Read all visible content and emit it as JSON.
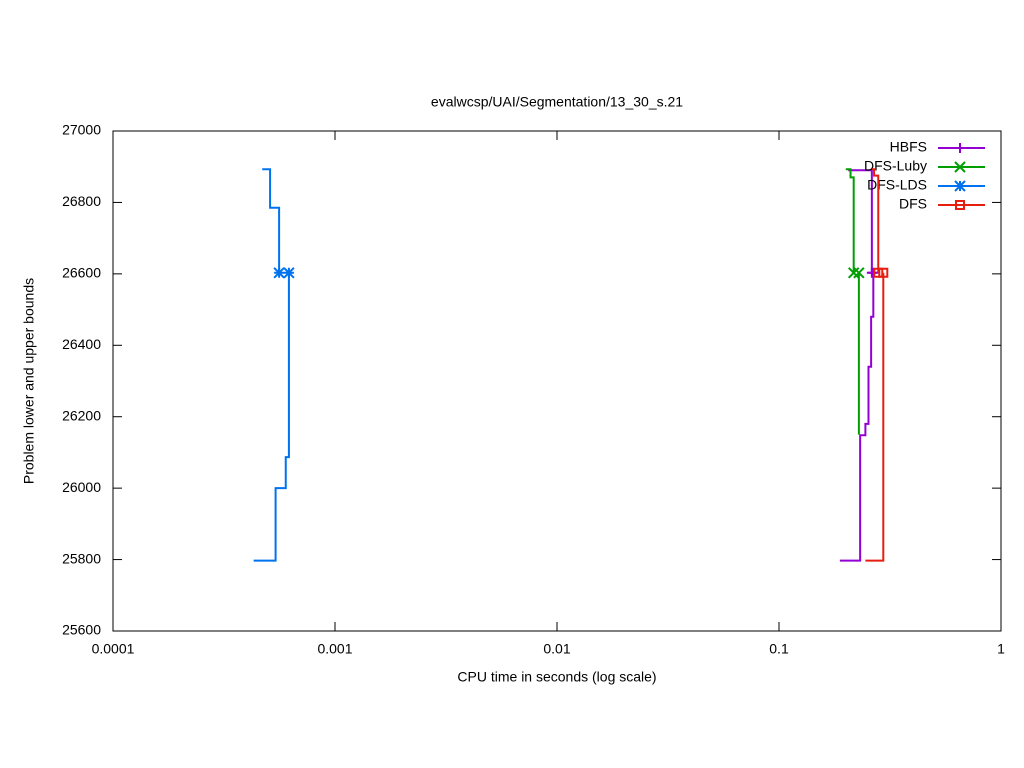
{
  "chart_data": {
    "type": "line",
    "step": true,
    "title": "evalwcsp/UAI/Segmentation/13_30_s.21",
    "xlabel": "CPU time in seconds (log scale)",
    "ylabel": "Problem lower and upper bounds",
    "xscale": "log",
    "xlim": [
      0.0001,
      1
    ],
    "xticks": [
      0.0001,
      0.001,
      0.01,
      0.1,
      1
    ],
    "ylim": [
      25600,
      27000
    ],
    "yticks": [
      25600,
      25800,
      26000,
      26200,
      26400,
      26600,
      26800,
      27000
    ],
    "legend": "top-right",
    "series": [
      {
        "name": "HBFS",
        "color": "#9400d3",
        "marker": "plus",
        "x": [
          0.205,
          0.262,
          null,
          0.188,
          0.232,
          0.245,
          0.253,
          0.26,
          0.266
        ],
        "values": [
          26890,
          26603,
          null,
          25797,
          26148,
          26180,
          26340,
          26480,
          26603
        ]
      },
      {
        "name": "DFS-Luby",
        "color": "#009e00",
        "marker": "cross",
        "x": [
          0.2,
          0.21,
          0.217,
          null,
          0.229,
          0.229
        ],
        "values": [
          26893,
          26870,
          26603,
          null,
          26150,
          26603
        ]
      },
      {
        "name": "DFS-LDS",
        "color": "#0072f0",
        "marker": "star",
        "x": [
          0.00047,
          0.00051,
          0.00056,
          null,
          0.00043,
          0.00054,
          0.0006,
          0.00062
        ],
        "values": [
          26893,
          26785,
          26603,
          null,
          25797,
          26000,
          26087,
          26603
        ]
      },
      {
        "name": "DFS",
        "color": "#e51e10",
        "marker": "square",
        "x": [
          0.262,
          0.268,
          0.28,
          null,
          0.245,
          0.295
        ],
        "values": [
          26893,
          26875,
          26603,
          null,
          25797,
          26603
        ]
      }
    ]
  }
}
